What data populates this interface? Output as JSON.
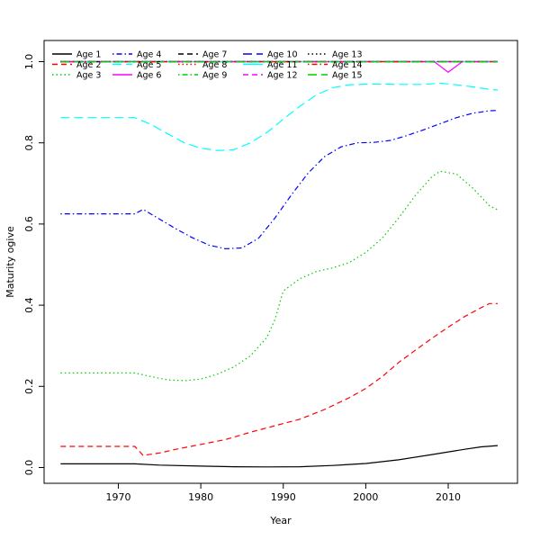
{
  "page": {
    "background": "#ffffff"
  },
  "chart_data": {
    "type": "line",
    "title": "",
    "xlabel": "Year",
    "ylabel": "Maturity ogive",
    "grid": false,
    "legend_position": "top-left, 5 columns, no box",
    "x_ticks": [
      1970,
      1980,
      1990,
      2000,
      2010
    ],
    "x_tick_labels": [
      "1970",
      "1980",
      "1990",
      "2000",
      "2010"
    ],
    "y_ticks": [
      0.0,
      0.2,
      0.4,
      0.6,
      0.8,
      1.0
    ],
    "y_tick_labels": [
      "0.0",
      "0.2",
      "0.4",
      "0.6",
      "0.8",
      "1.0"
    ],
    "x_range": [
      1963,
      2016
    ],
    "y_range": [
      0.0,
      1.0
    ],
    "x_range_padded": [
      1961.0,
      2018.4
    ],
    "y_range_padded": [
      -0.0388,
      1.0521
    ],
    "axis_color": "#000000",
    "series": [
      {
        "name": "Age 1",
        "color": "#000000",
        "linetype": "solid",
        "points": [
          [
            1963,
            0.009
          ],
          [
            1970,
            0.009
          ],
          [
            1972,
            0.009
          ],
          [
            1975,
            0.006
          ],
          [
            1980,
            0.0035
          ],
          [
            1984,
            0.002
          ],
          [
            1988,
            0.0015
          ],
          [
            1992,
            0.002
          ],
          [
            1996,
            0.005
          ],
          [
            2000,
            0.01
          ],
          [
            2004,
            0.019
          ],
          [
            2008,
            0.032
          ],
          [
            2012,
            0.045
          ],
          [
            2014,
            0.051
          ],
          [
            2016,
            0.054
          ]
        ]
      },
      {
        "name": "Age 2",
        "color": "#FF0000",
        "linetype": "dashed",
        "points": [
          [
            1963,
            0.052
          ],
          [
            1972,
            0.052
          ],
          [
            1973,
            0.03
          ],
          [
            1975,
            0.036
          ],
          [
            1977,
            0.045
          ],
          [
            1980,
            0.057
          ],
          [
            1983,
            0.069
          ],
          [
            1986,
            0.087
          ],
          [
            1989,
            0.103
          ],
          [
            1992,
            0.119
          ],
          [
            1995,
            0.143
          ],
          [
            1998,
            0.172
          ],
          [
            2000,
            0.195
          ],
          [
            2002,
            0.224
          ],
          [
            2004,
            0.259
          ],
          [
            2006,
            0.289
          ],
          [
            2008,
            0.318
          ],
          [
            2010,
            0.346
          ],
          [
            2012,
            0.372
          ],
          [
            2014,
            0.394
          ],
          [
            2015,
            0.404
          ],
          [
            2016,
            0.404
          ]
        ]
      },
      {
        "name": "Age 3",
        "color": "#00CD00",
        "linetype": "dotted",
        "points": [
          [
            1963,
            0.233
          ],
          [
            1972,
            0.233
          ],
          [
            1974,
            0.224
          ],
          [
            1976,
            0.216
          ],
          [
            1978,
            0.214
          ],
          [
            1980,
            0.218
          ],
          [
            1982,
            0.23
          ],
          [
            1984,
            0.248
          ],
          [
            1986,
            0.275
          ],
          [
            1988,
            0.32
          ],
          [
            1989,
            0.365
          ],
          [
            1990,
            0.435
          ],
          [
            1992,
            0.465
          ],
          [
            1994,
            0.483
          ],
          [
            1996,
            0.492
          ],
          [
            1998,
            0.505
          ],
          [
            2000,
            0.53
          ],
          [
            2002,
            0.565
          ],
          [
            2004,
            0.615
          ],
          [
            2006,
            0.67
          ],
          [
            2008,
            0.716
          ],
          [
            2009,
            0.73
          ],
          [
            2011,
            0.723
          ],
          [
            2013,
            0.688
          ],
          [
            2015,
            0.645
          ],
          [
            2016,
            0.635
          ]
        ]
      },
      {
        "name": "Age 4",
        "color": "#0000FF",
        "linetype": "dotdash",
        "points": [
          [
            1963,
            0.625
          ],
          [
            1972,
            0.625
          ],
          [
            1973,
            0.636
          ],
          [
            1975,
            0.612
          ],
          [
            1977,
            0.588
          ],
          [
            1979,
            0.566
          ],
          [
            1981,
            0.548
          ],
          [
            1983,
            0.539
          ],
          [
            1985,
            0.541
          ],
          [
            1987,
            0.565
          ],
          [
            1989,
            0.615
          ],
          [
            1991,
            0.672
          ],
          [
            1993,
            0.725
          ],
          [
            1995,
            0.766
          ],
          [
            1997,
            0.79
          ],
          [
            1999,
            0.8
          ],
          [
            2001,
            0.801
          ],
          [
            2003,
            0.806
          ],
          [
            2005,
            0.818
          ],
          [
            2007,
            0.832
          ],
          [
            2009,
            0.847
          ],
          [
            2011,
            0.862
          ],
          [
            2013,
            0.873
          ],
          [
            2015,
            0.879
          ],
          [
            2016,
            0.88
          ]
        ]
      },
      {
        "name": "Age 5",
        "color": "#00FFFF",
        "linetype": "longdash",
        "points": [
          [
            1963,
            0.862
          ],
          [
            1972,
            0.862
          ],
          [
            1974,
            0.845
          ],
          [
            1976,
            0.822
          ],
          [
            1978,
            0.8
          ],
          [
            1980,
            0.787
          ],
          [
            1982,
            0.781
          ],
          [
            1984,
            0.783
          ],
          [
            1986,
            0.8
          ],
          [
            1988,
            0.825
          ],
          [
            1990,
            0.858
          ],
          [
            1992,
            0.89
          ],
          [
            1994,
            0.918
          ],
          [
            1996,
            0.936
          ],
          [
            1998,
            0.943
          ],
          [
            2001,
            0.945
          ],
          [
            2004,
            0.944
          ],
          [
            2007,
            0.944
          ],
          [
            2009,
            0.947
          ],
          [
            2011,
            0.943
          ],
          [
            2013,
            0.938
          ],
          [
            2015,
            0.932
          ],
          [
            2016,
            0.93
          ]
        ]
      },
      {
        "name": "Age 6",
        "color": "#FF00FF",
        "linetype": "solid",
        "points": [
          [
            1963,
            1.0
          ],
          [
            2008.3,
            1.0
          ],
          [
            2010,
            0.974
          ],
          [
            2011.7,
            1.0
          ],
          [
            2016,
            1.0
          ]
        ]
      },
      {
        "name": "Age 7",
        "color": "#000000",
        "linetype": "dashed",
        "points": [
          [
            1963,
            1.0
          ],
          [
            2016,
            1.0
          ]
        ]
      },
      {
        "name": "Age 8",
        "color": "#FF0000",
        "linetype": "dotted",
        "points": [
          [
            1963,
            1.0
          ],
          [
            2016,
            1.0
          ]
        ]
      },
      {
        "name": "Age 9",
        "color": "#00CD00",
        "linetype": "dotdash",
        "points": [
          [
            1963,
            1.0
          ],
          [
            2016,
            1.0
          ]
        ]
      },
      {
        "name": "Age 10",
        "color": "#0000FF",
        "linetype": "longdash",
        "points": [
          [
            1963,
            1.0
          ],
          [
            2016,
            1.0
          ]
        ]
      },
      {
        "name": "Age 11",
        "color": "#00FFFF",
        "linetype": "solid",
        "points": [
          [
            1963,
            1.0
          ],
          [
            2016,
            1.0
          ]
        ]
      },
      {
        "name": "Age 12",
        "color": "#FF00FF",
        "linetype": "dashed",
        "points": [
          [
            1963,
            1.0
          ],
          [
            2016,
            1.0
          ]
        ]
      },
      {
        "name": "Age 13",
        "color": "#000000",
        "linetype": "dotted",
        "points": [
          [
            1963,
            1.0
          ],
          [
            2016,
            1.0
          ]
        ]
      },
      {
        "name": "Age 14",
        "color": "#FF0000",
        "linetype": "dotdash",
        "points": [
          [
            1963,
            1.0
          ],
          [
            2016,
            1.0
          ]
        ]
      },
      {
        "name": "Age 15",
        "color": "#00CD00",
        "linetype": "longdash",
        "points": [
          [
            1963,
            1.0
          ],
          [
            2016,
            1.0
          ]
        ]
      }
    ]
  }
}
